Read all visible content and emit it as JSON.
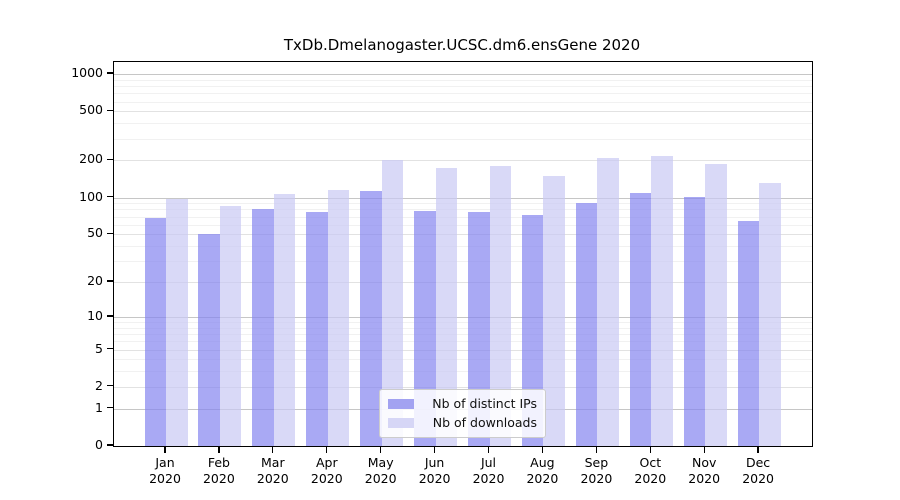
{
  "chart_data": {
    "type": "bar",
    "title": "TxDb.Dmelanogaster.UCSC.dm6.ensGene 2020",
    "categories": [
      "Jan",
      "Feb",
      "Mar",
      "Apr",
      "May",
      "Jun",
      "Jul",
      "Aug",
      "Sep",
      "Oct",
      "Nov",
      "Dec"
    ],
    "year_label": "2020",
    "series": [
      {
        "name": "Nb of distinct IPs",
        "color": "rgba(132,132,240,0.7)",
        "legend_color": "#a2a2f1",
        "values": [
          68,
          50,
          81,
          76,
          114,
          77,
          76,
          72,
          91,
          108,
          101,
          64
        ]
      },
      {
        "name": "Nb of downloads",
        "color": "rgba(201,201,243,0.7)",
        "legend_color": "#d6d6f6",
        "values": [
          97,
          85,
          107,
          115,
          200,
          173,
          179,
          150,
          211,
          216,
          186,
          132
        ]
      }
    ],
    "yticks": [
      0,
      1,
      2,
      5,
      10,
      20,
      50,
      100,
      200,
      500,
      1000
    ],
    "yscale": "log1p",
    "ylim": [
      0,
      1250
    ],
    "grid": true,
    "legend_position": "lower-center",
    "axis_colors": {
      "grid_decade": "#c6c6c6",
      "grid_labeled": "#e2e2e2",
      "grid_minor": "#f1f1f1",
      "spine": "#000000"
    }
  }
}
